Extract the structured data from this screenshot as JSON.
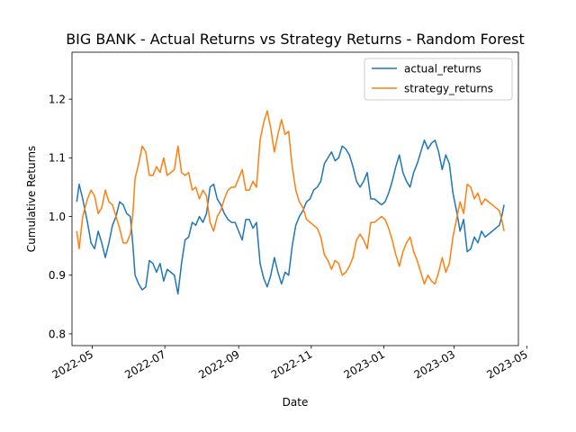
{
  "chart_data": {
    "type": "line",
    "title": "BIG BANK - Actual Returns vs Strategy Returns - Random Forest",
    "xlabel": "Date",
    "ylabel": "Cumulative Returns",
    "x_axis_type": "date",
    "xlim": [
      "2022-04-14",
      "2023-04-24"
    ],
    "ylim": [
      0.78,
      1.28
    ],
    "x_ticks": [
      "2022-05",
      "2022-07",
      "2022-09",
      "2022-11",
      "2023-01",
      "2023-03",
      "2023-05"
    ],
    "y_ticks": [
      "0.8",
      "0.9",
      "1.0",
      "1.1",
      "1.2"
    ],
    "legend_position": "top-right",
    "grid": false,
    "series": [
      {
        "name": "actual_returns",
        "color": "#1f77b4",
        "points": [
          [
            "2022-04-18",
            1.025
          ],
          [
            "2022-04-20",
            1.055
          ],
          [
            "2022-04-23",
            1.03
          ],
          [
            "2022-04-27",
            0.99
          ],
          [
            "2022-04-30",
            0.955
          ],
          [
            "2022-05-03",
            0.945
          ],
          [
            "2022-05-06",
            0.975
          ],
          [
            "2022-05-09",
            0.955
          ],
          [
            "2022-05-12",
            0.93
          ],
          [
            "2022-05-15",
            0.955
          ],
          [
            "2022-05-18",
            0.985
          ],
          [
            "2022-05-21",
            1.0
          ],
          [
            "2022-05-24",
            1.025
          ],
          [
            "2022-05-27",
            1.02
          ],
          [
            "2022-05-30",
            1.005
          ],
          [
            "2022-06-02",
            1.0
          ],
          [
            "2022-06-04",
            0.955
          ],
          [
            "2022-06-06",
            0.9
          ],
          [
            "2022-06-09",
            0.885
          ],
          [
            "2022-06-12",
            0.875
          ],
          [
            "2022-06-15",
            0.88
          ],
          [
            "2022-06-18",
            0.925
          ],
          [
            "2022-06-21",
            0.92
          ],
          [
            "2022-06-24",
            0.905
          ],
          [
            "2022-06-27",
            0.92
          ],
          [
            "2022-06-30",
            0.89
          ],
          [
            "2022-07-03",
            0.91
          ],
          [
            "2022-07-06",
            0.905
          ],
          [
            "2022-07-09",
            0.9
          ],
          [
            "2022-07-12",
            0.868
          ],
          [
            "2022-07-15",
            0.92
          ],
          [
            "2022-07-18",
            0.96
          ],
          [
            "2022-07-21",
            0.965
          ],
          [
            "2022-07-24",
            0.99
          ],
          [
            "2022-07-27",
            0.985
          ],
          [
            "2022-07-30",
            1.0
          ],
          [
            "2022-08-02",
            0.99
          ],
          [
            "2022-08-05",
            1.005
          ],
          [
            "2022-08-08",
            1.05
          ],
          [
            "2022-08-11",
            1.055
          ],
          [
            "2022-08-14",
            1.03
          ],
          [
            "2022-08-17",
            1.02
          ],
          [
            "2022-08-20",
            1.005
          ],
          [
            "2022-08-23",
            0.995
          ],
          [
            "2022-08-26",
            0.99
          ],
          [
            "2022-08-29",
            0.99
          ],
          [
            "2022-09-01",
            0.975
          ],
          [
            "2022-09-04",
            0.96
          ],
          [
            "2022-09-07",
            0.995
          ],
          [
            "2022-09-10",
            0.995
          ],
          [
            "2022-09-13",
            0.98
          ],
          [
            "2022-09-16",
            0.99
          ],
          [
            "2022-09-19",
            0.92
          ],
          [
            "2022-09-22",
            0.895
          ],
          [
            "2022-09-25",
            0.88
          ],
          [
            "2022-09-28",
            0.9
          ],
          [
            "2022-10-01",
            0.93
          ],
          [
            "2022-10-04",
            0.905
          ],
          [
            "2022-10-07",
            0.885
          ],
          [
            "2022-10-10",
            0.905
          ],
          [
            "2022-10-13",
            0.9
          ],
          [
            "2022-10-16",
            0.95
          ],
          [
            "2022-10-19",
            0.985
          ],
          [
            "2022-10-22",
            1.0
          ],
          [
            "2022-10-25",
            1.01
          ],
          [
            "2022-10-28",
            1.025
          ],
          [
            "2022-10-31",
            1.03
          ],
          [
            "2022-11-03",
            1.045
          ],
          [
            "2022-11-06",
            1.05
          ],
          [
            "2022-11-09",
            1.06
          ],
          [
            "2022-11-12",
            1.09
          ],
          [
            "2022-11-15",
            1.1
          ],
          [
            "2022-11-18",
            1.11
          ],
          [
            "2022-11-21",
            1.095
          ],
          [
            "2022-11-24",
            1.1
          ],
          [
            "2022-11-27",
            1.12
          ],
          [
            "2022-11-30",
            1.115
          ],
          [
            "2022-12-03",
            1.105
          ],
          [
            "2022-12-06",
            1.085
          ],
          [
            "2022-12-09",
            1.06
          ],
          [
            "2022-12-12",
            1.05
          ],
          [
            "2022-12-15",
            1.06
          ],
          [
            "2022-12-18",
            1.075
          ],
          [
            "2022-12-21",
            1.03
          ],
          [
            "2022-12-24",
            1.03
          ],
          [
            "2022-12-27",
            1.025
          ],
          [
            "2022-12-30",
            1.02
          ],
          [
            "2023-01-02",
            1.025
          ],
          [
            "2023-01-05",
            1.04
          ],
          [
            "2023-01-08",
            1.06
          ],
          [
            "2023-01-11",
            1.085
          ],
          [
            "2023-01-14",
            1.105
          ],
          [
            "2023-01-17",
            1.075
          ],
          [
            "2023-01-20",
            1.06
          ],
          [
            "2023-01-23",
            1.05
          ],
          [
            "2023-01-26",
            1.075
          ],
          [
            "2023-01-29",
            1.09
          ],
          [
            "2023-02-01",
            1.11
          ],
          [
            "2023-02-04",
            1.13
          ],
          [
            "2023-02-07",
            1.115
          ],
          [
            "2023-02-10",
            1.125
          ],
          [
            "2023-02-13",
            1.13
          ],
          [
            "2023-02-16",
            1.11
          ],
          [
            "2023-02-19",
            1.08
          ],
          [
            "2023-02-22",
            1.105
          ],
          [
            "2023-02-25",
            1.09
          ],
          [
            "2023-02-28",
            1.04
          ],
          [
            "2023-03-03",
            1.01
          ],
          [
            "2023-03-06",
            0.975
          ],
          [
            "2023-03-09",
            0.995
          ],
          [
            "2023-03-12",
            0.94
          ],
          [
            "2023-03-15",
            0.945
          ],
          [
            "2023-03-18",
            0.965
          ],
          [
            "2023-03-21",
            0.955
          ],
          [
            "2023-03-24",
            0.975
          ],
          [
            "2023-03-27",
            0.965
          ],
          [
            "2023-03-30",
            0.97
          ],
          [
            "2023-04-02",
            0.975
          ],
          [
            "2023-04-05",
            0.98
          ],
          [
            "2023-04-08",
            0.985
          ],
          [
            "2023-04-10",
            1.0
          ],
          [
            "2023-04-12",
            1.02
          ]
        ]
      },
      {
        "name": "strategy_returns",
        "color": "#ff7f0e",
        "points": [
          [
            "2022-04-18",
            0.975
          ],
          [
            "2022-04-20",
            0.945
          ],
          [
            "2022-04-23",
            1.0
          ],
          [
            "2022-04-27",
            1.03
          ],
          [
            "2022-04-30",
            1.045
          ],
          [
            "2022-05-03",
            1.035
          ],
          [
            "2022-05-06",
            1.005
          ],
          [
            "2022-05-09",
            1.015
          ],
          [
            "2022-05-12",
            1.045
          ],
          [
            "2022-05-15",
            1.025
          ],
          [
            "2022-05-18",
            1.02
          ],
          [
            "2022-05-21",
            1.0
          ],
          [
            "2022-05-24",
            0.98
          ],
          [
            "2022-05-27",
            0.955
          ],
          [
            "2022-05-30",
            0.955
          ],
          [
            "2022-06-02",
            0.97
          ],
          [
            "2022-06-04",
            1.0
          ],
          [
            "2022-06-06",
            1.065
          ],
          [
            "2022-06-09",
            1.09
          ],
          [
            "2022-06-12",
            1.12
          ],
          [
            "2022-06-15",
            1.11
          ],
          [
            "2022-06-18",
            1.07
          ],
          [
            "2022-06-21",
            1.07
          ],
          [
            "2022-06-24",
            1.085
          ],
          [
            "2022-06-27",
            1.075
          ],
          [
            "2022-06-30",
            1.1
          ],
          [
            "2022-07-03",
            1.07
          ],
          [
            "2022-07-06",
            1.075
          ],
          [
            "2022-07-09",
            1.08
          ],
          [
            "2022-07-12",
            1.12
          ],
          [
            "2022-07-15",
            1.075
          ],
          [
            "2022-07-18",
            1.07
          ],
          [
            "2022-07-21",
            1.075
          ],
          [
            "2022-07-24",
            1.045
          ],
          [
            "2022-07-27",
            1.05
          ],
          [
            "2022-07-30",
            1.03
          ],
          [
            "2022-08-02",
            1.045
          ],
          [
            "2022-08-05",
            1.035
          ],
          [
            "2022-08-08",
            0.99
          ],
          [
            "2022-08-11",
            0.975
          ],
          [
            "2022-08-14",
            1.0
          ],
          [
            "2022-08-17",
            1.01
          ],
          [
            "2022-08-20",
            1.03
          ],
          [
            "2022-08-23",
            1.045
          ],
          [
            "2022-08-26",
            1.05
          ],
          [
            "2022-08-29",
            1.05
          ],
          [
            "2022-09-01",
            1.065
          ],
          [
            "2022-09-04",
            1.08
          ],
          [
            "2022-09-07",
            1.045
          ],
          [
            "2022-09-10",
            1.045
          ],
          [
            "2022-09-13",
            1.06
          ],
          [
            "2022-09-16",
            1.05
          ],
          [
            "2022-09-19",
            1.13
          ],
          [
            "2022-09-22",
            1.16
          ],
          [
            "2022-09-25",
            1.18
          ],
          [
            "2022-09-28",
            1.15
          ],
          [
            "2022-10-01",
            1.11
          ],
          [
            "2022-10-04",
            1.14
          ],
          [
            "2022-10-07",
            1.165
          ],
          [
            "2022-10-10",
            1.14
          ],
          [
            "2022-10-13",
            1.145
          ],
          [
            "2022-10-16",
            1.085
          ],
          [
            "2022-10-19",
            1.045
          ],
          [
            "2022-10-22",
            1.025
          ],
          [
            "2022-10-25",
            1.015
          ],
          [
            "2022-10-28",
            0.995
          ],
          [
            "2022-10-31",
            0.99
          ],
          [
            "2022-11-03",
            0.985
          ],
          [
            "2022-11-06",
            0.98
          ],
          [
            "2022-11-09",
            0.965
          ],
          [
            "2022-11-12",
            0.935
          ],
          [
            "2022-11-15",
            0.925
          ],
          [
            "2022-11-18",
            0.91
          ],
          [
            "2022-11-21",
            0.925
          ],
          [
            "2022-11-24",
            0.92
          ],
          [
            "2022-11-27",
            0.9
          ],
          [
            "2022-11-30",
            0.905
          ],
          [
            "2022-12-03",
            0.915
          ],
          [
            "2022-12-06",
            0.93
          ],
          [
            "2022-12-09",
            0.96
          ],
          [
            "2022-12-12",
            0.97
          ],
          [
            "2022-12-15",
            0.96
          ],
          [
            "2022-12-18",
            0.945
          ],
          [
            "2022-12-21",
            0.99
          ],
          [
            "2022-12-24",
            0.99
          ],
          [
            "2022-12-27",
            0.995
          ],
          [
            "2022-12-30",
            1.0
          ],
          [
            "2023-01-02",
            0.995
          ],
          [
            "2023-01-05",
            0.98
          ],
          [
            "2023-01-08",
            0.96
          ],
          [
            "2023-01-11",
            0.935
          ],
          [
            "2023-01-14",
            0.915
          ],
          [
            "2023-01-17",
            0.94
          ],
          [
            "2023-01-20",
            0.955
          ],
          [
            "2023-01-23",
            0.965
          ],
          [
            "2023-01-26",
            0.94
          ],
          [
            "2023-01-29",
            0.925
          ],
          [
            "2023-02-01",
            0.905
          ],
          [
            "2023-02-04",
            0.885
          ],
          [
            "2023-02-07",
            0.9
          ],
          [
            "2023-02-10",
            0.89
          ],
          [
            "2023-02-13",
            0.885
          ],
          [
            "2023-02-16",
            0.905
          ],
          [
            "2023-02-19",
            0.93
          ],
          [
            "2023-02-22",
            0.905
          ],
          [
            "2023-02-25",
            0.92
          ],
          [
            "2023-02-28",
            0.965
          ],
          [
            "2023-03-03",
            0.995
          ],
          [
            "2023-03-06",
            1.025
          ],
          [
            "2023-03-09",
            1.005
          ],
          [
            "2023-03-12",
            1.055
          ],
          [
            "2023-03-15",
            1.05
          ],
          [
            "2023-03-18",
            1.03
          ],
          [
            "2023-03-21",
            1.04
          ],
          [
            "2023-03-24",
            1.02
          ],
          [
            "2023-03-27",
            1.03
          ],
          [
            "2023-03-30",
            1.025
          ],
          [
            "2023-04-02",
            1.02
          ],
          [
            "2023-04-05",
            1.015
          ],
          [
            "2023-04-08",
            1.01
          ],
          [
            "2023-04-10",
            0.995
          ],
          [
            "2023-04-12",
            0.975
          ]
        ]
      }
    ]
  }
}
